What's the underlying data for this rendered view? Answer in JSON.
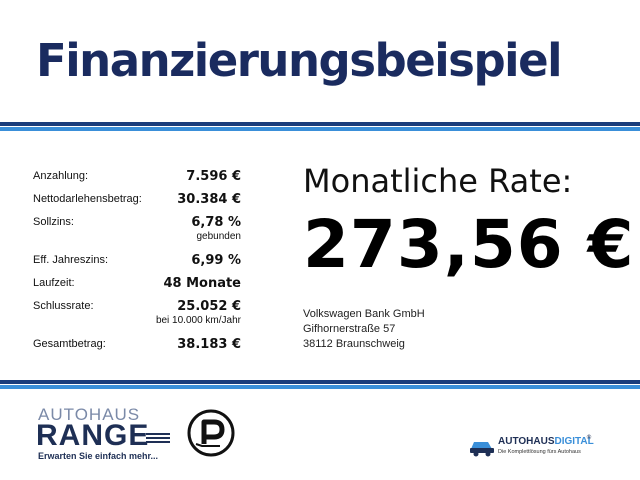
{
  "header": {
    "title": "Finanzierungsbeispiel"
  },
  "financing": {
    "rows": [
      {
        "label": "Anzahlung:",
        "value": "7.596 €",
        "sub": ""
      },
      {
        "label": "Nettodarlehensbetrag:",
        "value": "30.384 €",
        "sub": ""
      },
      {
        "label": "Sollzins:",
        "value": "6,78 %",
        "sub": "gebunden"
      },
      {
        "label": "Eff. Jahreszins:",
        "value": "6,99 %",
        "sub": ""
      },
      {
        "label": "Laufzeit:",
        "value": "48 Monate",
        "sub": ""
      },
      {
        "label": "Schlussrate:",
        "value": "25.052 €",
        "sub": "bei 10.000 km/Jahr"
      },
      {
        "label": "Gesamtbetrag:",
        "value": "38.183 €",
        "sub": ""
      }
    ]
  },
  "rate": {
    "label": "Monatliche Rate:",
    "value": "273,56 €"
  },
  "bank": {
    "name": "Volkswagen Bank GmbH",
    "street": "Gifhornerstraße 57",
    "city": "38112 Braunschweig"
  },
  "footer": {
    "range_logo": {
      "top": "AUTOHAUS",
      "name": "RANGE",
      "tagline": "Erwarten Sie einfach mehr..."
    },
    "p_logo": {
      "icon": "p-circle-logo"
    },
    "digital_logo": {
      "name_part1": "AUTOHAUS",
      "name_part2": "DIGITAL",
      "reg": "®",
      "slogan": "Die Komplettlösung fürs Autohaus"
    }
  },
  "colors": {
    "title": "#1a2b5f",
    "stripe_dark": "#1a3d7c",
    "stripe_light": "#3a8fd9",
    "logo_dark": "#1e2f55"
  }
}
